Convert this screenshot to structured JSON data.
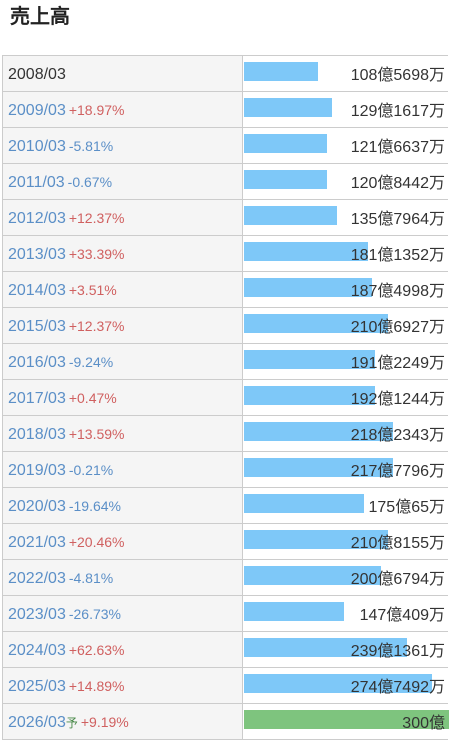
{
  "page": {
    "title": "売上高"
  },
  "rows": [
    {
      "period": "2008/03",
      "forecast": "",
      "change": "",
      "direction": "",
      "amount": "108億5698万",
      "value": 108.5698
    },
    {
      "period": "2009/03",
      "forecast": "",
      "change": "+18.97%",
      "direction": "up",
      "amount": "129億1617万",
      "value": 129.1617
    },
    {
      "period": "2010/03",
      "forecast": "",
      "change": "-5.81%",
      "direction": "down",
      "amount": "121億6637万",
      "value": 121.6637
    },
    {
      "period": "2011/03",
      "forecast": "",
      "change": "-0.67%",
      "direction": "down",
      "amount": "120億8442万",
      "value": 120.8442
    },
    {
      "period": "2012/03",
      "forecast": "",
      "change": "+12.37%",
      "direction": "up",
      "amount": "135億7964万",
      "value": 135.7964
    },
    {
      "period": "2013/03",
      "forecast": "",
      "change": "+33.39%",
      "direction": "up",
      "amount": "181億1352万",
      "value": 181.1352
    },
    {
      "period": "2014/03",
      "forecast": "",
      "change": "+3.51%",
      "direction": "up",
      "amount": "187億4998万",
      "value": 187.4998
    },
    {
      "period": "2015/03",
      "forecast": "",
      "change": "+12.37%",
      "direction": "up",
      "amount": "210億6927万",
      "value": 210.6927
    },
    {
      "period": "2016/03",
      "forecast": "",
      "change": "-9.24%",
      "direction": "down",
      "amount": "191億2249万",
      "value": 191.2249
    },
    {
      "period": "2017/03",
      "forecast": "",
      "change": "+0.47%",
      "direction": "up",
      "amount": "192億1244万",
      "value": 192.1244
    },
    {
      "period": "2018/03",
      "forecast": "",
      "change": "+13.59%",
      "direction": "up",
      "amount": "218億2343万",
      "value": 218.2343
    },
    {
      "period": "2019/03",
      "forecast": "",
      "change": "-0.21%",
      "direction": "down",
      "amount": "217億7796万",
      "value": 217.7796
    },
    {
      "period": "2020/03",
      "forecast": "",
      "change": "-19.64%",
      "direction": "down",
      "amount": "175億65万",
      "value": 175.0065
    },
    {
      "period": "2021/03",
      "forecast": "",
      "change": "+20.46%",
      "direction": "up",
      "amount": "210億8155万",
      "value": 210.8155
    },
    {
      "period": "2022/03",
      "forecast": "",
      "change": "-4.81%",
      "direction": "down",
      "amount": "200億6794万",
      "value": 200.6794
    },
    {
      "period": "2023/03",
      "forecast": "",
      "change": "-26.73%",
      "direction": "down",
      "amount": "147億409万",
      "value": 147.0409
    },
    {
      "period": "2024/03",
      "forecast": "",
      "change": "+62.63%",
      "direction": "up",
      "amount": "239億1361万",
      "value": 239.1361
    },
    {
      "period": "2025/03",
      "forecast": "",
      "change": "+14.89%",
      "direction": "up",
      "amount": "274億7492万",
      "value": 274.7492
    },
    {
      "period": "2026/03",
      "forecast": "予",
      "change": "+9.19%",
      "direction": "up",
      "amount": "300億",
      "value": 300
    }
  ],
  "colors": {
    "bar": "#7ec8f8",
    "forecast_bar": "#7ec47e",
    "up": "#d06060",
    "down": "#5b8fc7"
  }
}
